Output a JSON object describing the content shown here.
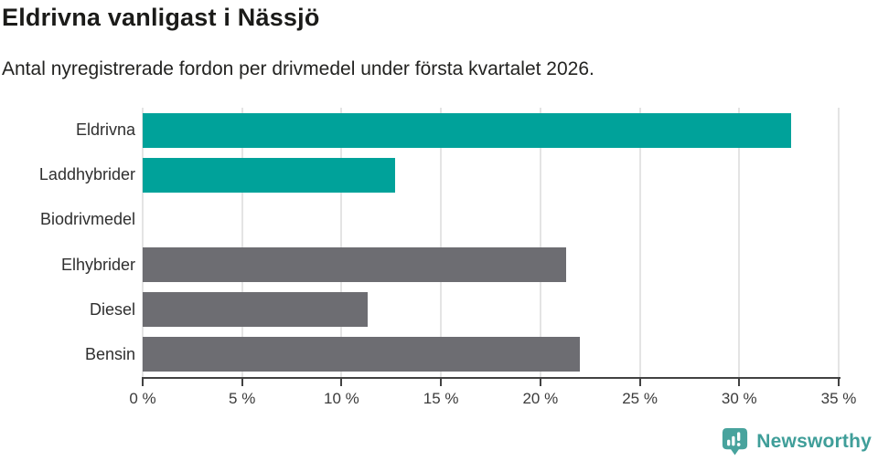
{
  "title": "Eldrivna vanligast i Nässjö",
  "subtitle": "Antal nyregistrerade fordon per drivmedel under första kvartalet 2026.",
  "chart_data": {
    "type": "bar",
    "orientation": "horizontal",
    "title": "Eldrivna vanligast i Nässjö",
    "subtitle": "Antal nyregistrerade fordon per drivmedel under första kvartalet 2026.",
    "categories": [
      "Eldrivna",
      "Laddhybrider",
      "Biodrivmedel",
      "Elhybrider",
      "Diesel",
      "Bensin"
    ],
    "values": [
      32.6,
      12.7,
      0,
      21.3,
      11.3,
      22.0
    ],
    "unit": "%",
    "bar_colors": [
      "#00a29a",
      "#00a29a",
      "#00a29a",
      "#6d6d72",
      "#6d6d72",
      "#6d6d72"
    ],
    "xlim": [
      0,
      35
    ],
    "x_ticks": [
      0,
      5,
      10,
      15,
      20,
      25,
      30,
      35
    ],
    "x_tick_labels": [
      "0 %",
      "5 %",
      "10 %",
      "15 %",
      "20 %",
      "25 %",
      "30 %",
      "35 %"
    ],
    "grid": "vertical-on",
    "legend": "none",
    "xlabel": "",
    "ylabel": ""
  },
  "colors": {
    "accent_teal": "#00a29a",
    "neutral_gray": "#6d6d72",
    "gridline": "#e4e4e4",
    "axis": "#424242",
    "logo_teal": "#3f9e99",
    "logo_icon_teal": "#48a39d"
  },
  "branding": {
    "logo_text": "Newsworthy",
    "logo_icon": "newsworthy-chart-bubble-icon"
  }
}
